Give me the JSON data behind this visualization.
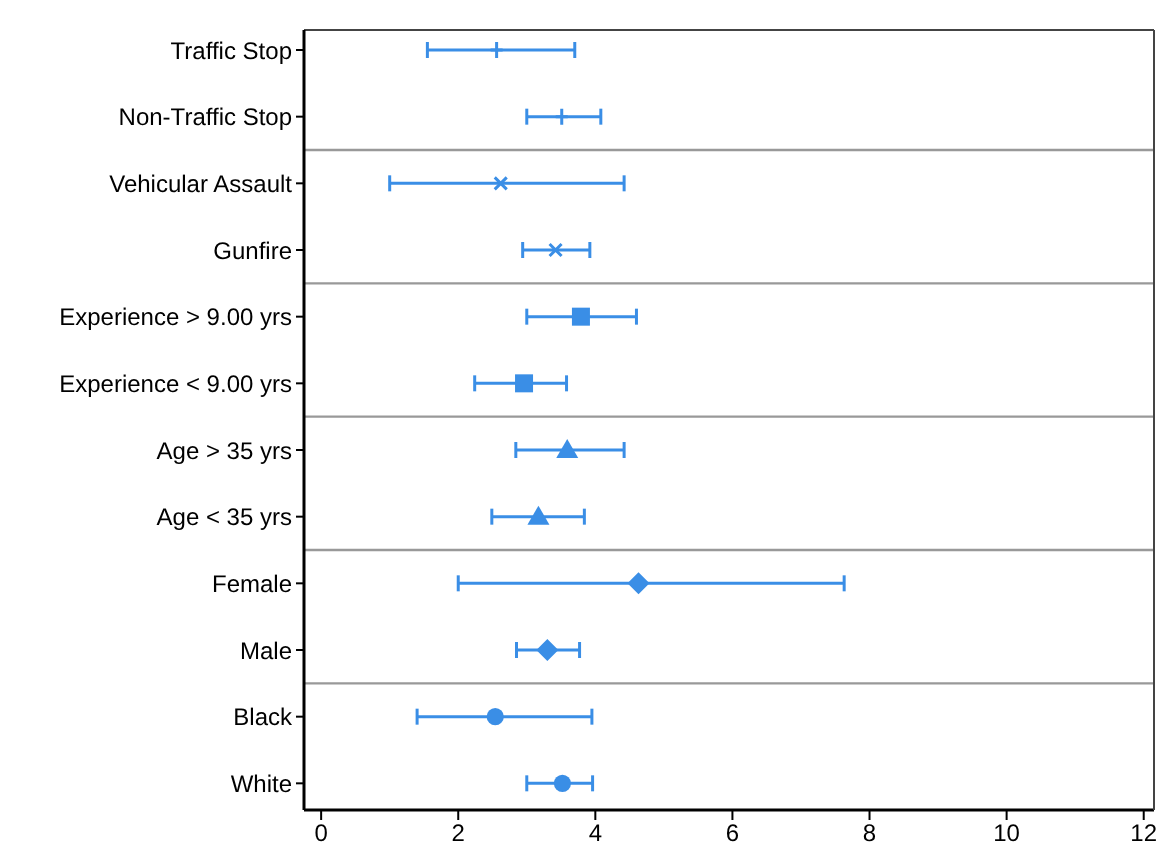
{
  "chart_data": {
    "type": "scatter",
    "categories": [
      "Traffic Stop",
      "Non-Traffic Stop",
      "Vehicular Assault",
      "Gunfire",
      "Experience >  9.00 yrs",
      "Experience <  9.00 yrs",
      "Age > 35 yrs",
      "Age < 35 yrs",
      "Female",
      "Male",
      "Black",
      "White"
    ],
    "series": [
      {
        "color": "#3a8ee6",
        "marker": "plus",
        "values": [
          2.56,
          3.51,
          null,
          null,
          null,
          null,
          null,
          null,
          null,
          null,
          null,
          null
        ],
        "errors": [
          [
            1.55,
            3.7
          ],
          [
            3.0,
            4.08
          ],
          null,
          null,
          null,
          null,
          null,
          null,
          null,
          null,
          null,
          null
        ]
      },
      {
        "color": "#3a8ee6",
        "marker": "cross",
        "values": [
          null,
          null,
          2.62,
          3.42,
          null,
          null,
          null,
          null,
          null,
          null,
          null,
          null
        ],
        "errors": [
          null,
          null,
          [
            1.0,
            4.42
          ],
          [
            2.94,
            3.92
          ],
          null,
          null,
          null,
          null,
          null,
          null,
          null,
          null
        ]
      },
      {
        "color": "#3a8ee6",
        "marker": "square",
        "values": [
          null,
          null,
          null,
          null,
          3.79,
          2.96,
          null,
          null,
          null,
          null,
          null,
          null
        ],
        "errors": [
          null,
          null,
          null,
          null,
          [
            3.0,
            4.6
          ],
          [
            2.24,
            3.58
          ],
          null,
          null,
          null,
          null,
          null,
          null
        ]
      },
      {
        "color": "#3a8ee6",
        "marker": "triangle",
        "values": [
          null,
          null,
          null,
          null,
          null,
          null,
          3.59,
          3.17,
          null,
          null,
          null,
          null
        ],
        "errors": [
          null,
          null,
          null,
          null,
          null,
          null,
          [
            2.84,
            4.42
          ],
          [
            2.49,
            3.84
          ],
          null,
          null,
          null,
          null
        ]
      },
      {
        "color": "#3a8ee6",
        "marker": "diamond",
        "values": [
          null,
          null,
          null,
          null,
          null,
          null,
          null,
          null,
          4.63,
          3.3,
          null,
          null
        ],
        "errors": [
          null,
          null,
          null,
          null,
          null,
          null,
          null,
          null,
          [
            2.0,
            7.63
          ],
          [
            2.85,
            3.77
          ],
          null,
          null
        ]
      },
      {
        "color": "#3a8ee6",
        "marker": "circle",
        "values": [
          null,
          null,
          null,
          null,
          null,
          null,
          null,
          null,
          null,
          null,
          2.54,
          3.52
        ],
        "errors": [
          null,
          null,
          null,
          null,
          null,
          null,
          null,
          null,
          null,
          null,
          [
            1.4,
            3.95
          ],
          [
            3.0,
            3.96
          ]
        ]
      }
    ],
    "orientation": "horizontal",
    "xlim": [
      -0.25,
      12.15
    ],
    "xticks": [
      0,
      2,
      4,
      6,
      8,
      10,
      12
    ]
  }
}
